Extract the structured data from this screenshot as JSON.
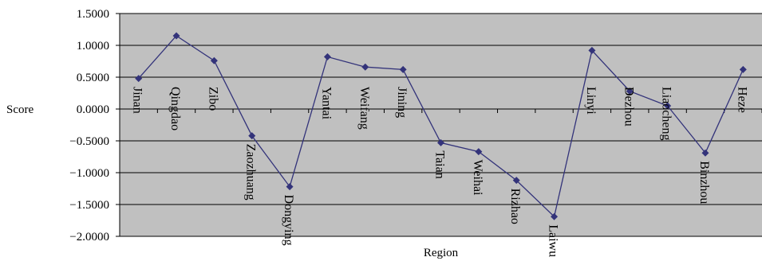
{
  "chart_data": {
    "type": "line",
    "title": "",
    "xlabel": "Region",
    "ylabel": "Score",
    "ylim": [
      -2.0,
      1.5
    ],
    "yticks": [
      "1.5000",
      "1.0000",
      "0.5000",
      "0.0000",
      "−0.5000",
      "−1.0000",
      "−1.5000",
      "−2.0000"
    ],
    "ytick_values": [
      1.5,
      1.0,
      0.5,
      0.0,
      -0.5,
      -1.0,
      -1.5,
      -2.0
    ],
    "grid": true,
    "legend": "none",
    "categories": [
      "Jinan",
      "Qingdao",
      "Zibo",
      "Zaozhuang",
      "Dongying",
      "Yantai",
      "Weifang",
      "Jining",
      "Taian",
      "Weihai",
      "Rizhao",
      "Laiwu",
      "Linyi",
      "Dezhou",
      "Liaocheng",
      "Binzhou",
      "Heze"
    ],
    "series": [
      {
        "values": [
          0.48,
          1.15,
          0.76,
          -0.42,
          -1.22,
          0.82,
          0.66,
          0.62,
          -0.53,
          -0.67,
          -1.12,
          -1.69,
          0.92,
          0.28,
          0.05,
          -0.69,
          0.62
        ],
        "color": "#33337a"
      }
    ],
    "colors": {
      "plot_background": "#c0c0c0",
      "grid": "#000000",
      "line": "#33337a",
      "marker": "#33337a"
    }
  }
}
